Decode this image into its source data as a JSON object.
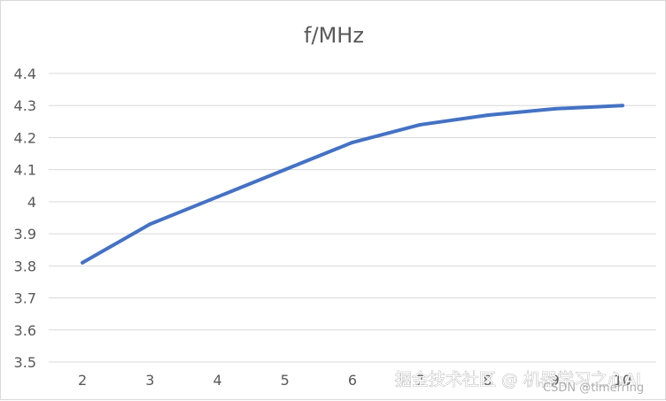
{
  "chart_data": {
    "type": "line",
    "title": "f/MHz",
    "xlabel": "",
    "ylabel": "",
    "x": [
      2,
      3,
      4,
      5,
      6,
      7,
      8,
      9,
      10
    ],
    "categories": [
      "2",
      "3",
      "4",
      "5",
      "6",
      "7",
      "8",
      "9",
      "10"
    ],
    "series": [
      {
        "values": [
          3.81,
          3.93,
          4.015,
          4.1,
          4.185,
          4.24,
          4.27,
          4.29,
          4.3
        ]
      }
    ],
    "ylim": [
      3.5,
      4.4
    ],
    "yticks": [
      "3.5",
      "3.6",
      "3.7",
      "3.8",
      "3.9",
      "4",
      "4.1",
      "4.2",
      "4.3",
      "4.4"
    ],
    "grid": "horizontal",
    "line_color": "#4472c4"
  },
  "watermarks": {
    "primary": "掘金技术社区 @ 机器学习之心AI",
    "secondary": "CSDN @timerring"
  }
}
